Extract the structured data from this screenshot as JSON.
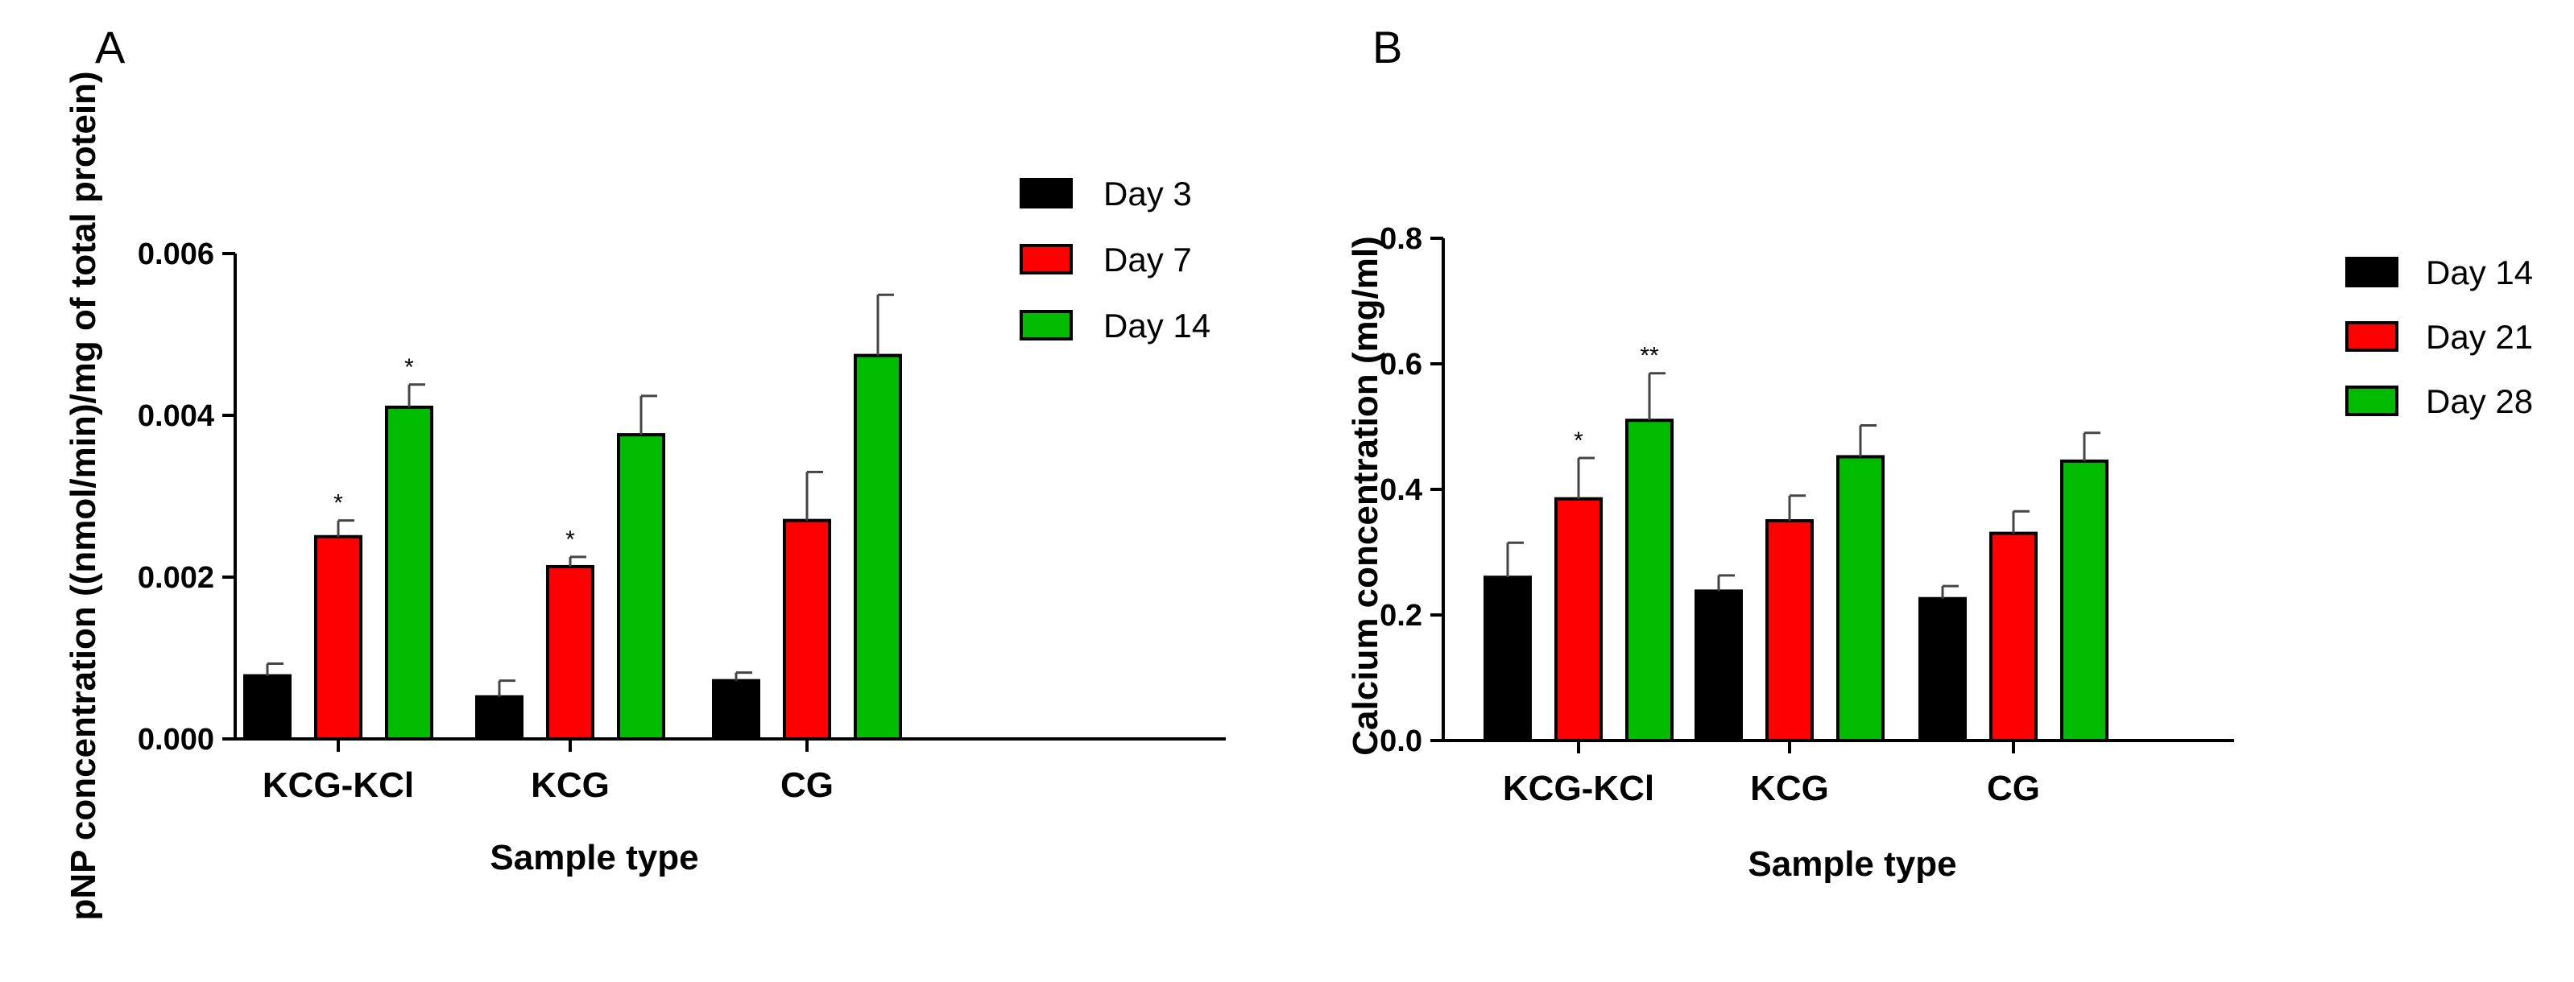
{
  "chart_data": [
    {
      "panel_label": "A",
      "type": "bar",
      "title": "",
      "xlabel": "Sample type",
      "ylabel": "pNP concentration ((nmol/min)/mg of total protein)",
      "ylim": [
        0,
        0.006
      ],
      "yticks": [
        "0.000",
        "0.002",
        "0.004",
        "0.006"
      ],
      "ytick_values": [
        0,
        0.002,
        0.004,
        0.006
      ],
      "categories": [
        "KCG-KCl",
        "KCG",
        "CG"
      ],
      "legend_position": "top-right",
      "series": [
        {
          "name": "Day 3",
          "color": "#000000",
          "values": [
            0.00078,
            0.00052,
            0.00072
          ],
          "errors": [
            0.00015,
            0.0002,
            0.0001
          ],
          "annotations": [
            "",
            "",
            ""
          ]
        },
        {
          "name": "Day 7",
          "color": "#ff0000",
          "values": [
            0.0025,
            0.00213,
            0.0027
          ],
          "errors": [
            0.0002,
            0.00012,
            0.0006
          ],
          "annotations": [
            "*",
            "*",
            ""
          ]
        },
        {
          "name": "Day 14",
          "color": "#00bb00",
          "values": [
            0.0041,
            0.00376,
            0.00474
          ],
          "errors": [
            0.00028,
            0.00048,
            0.00075
          ],
          "annotations": [
            "*",
            "",
            ""
          ]
        }
      ]
    },
    {
      "panel_label": "B",
      "type": "bar",
      "title": "",
      "xlabel": "Sample type",
      "ylabel": "Calcium concentration (mg/ml)",
      "ylim": [
        0,
        0.8
      ],
      "yticks": [
        "0.0",
        "0.2",
        "0.4",
        "0.6",
        "0.8"
      ],
      "ytick_values": [
        0,
        0.2,
        0.4,
        0.6,
        0.8
      ],
      "categories": [
        "KCG-KCl",
        "KCG",
        "CG"
      ],
      "legend_position": "top-right",
      "series": [
        {
          "name": "Day 14",
          "color": "#000000",
          "values": [
            0.26,
            0.238,
            0.226
          ],
          "errors": [
            0.055,
            0.025,
            0.02
          ],
          "annotations": [
            "",
            "",
            ""
          ]
        },
        {
          "name": "Day 21",
          "color": "#ff0000",
          "values": [
            0.385,
            0.35,
            0.33
          ],
          "errors": [
            0.065,
            0.04,
            0.035
          ],
          "annotations": [
            "*",
            "",
            ""
          ]
        },
        {
          "name": "Day 28",
          "color": "#00bb00",
          "values": [
            0.51,
            0.452,
            0.445
          ],
          "errors": [
            0.075,
            0.05,
            0.045
          ],
          "annotations": [
            "**",
            "",
            ""
          ]
        }
      ]
    }
  ]
}
